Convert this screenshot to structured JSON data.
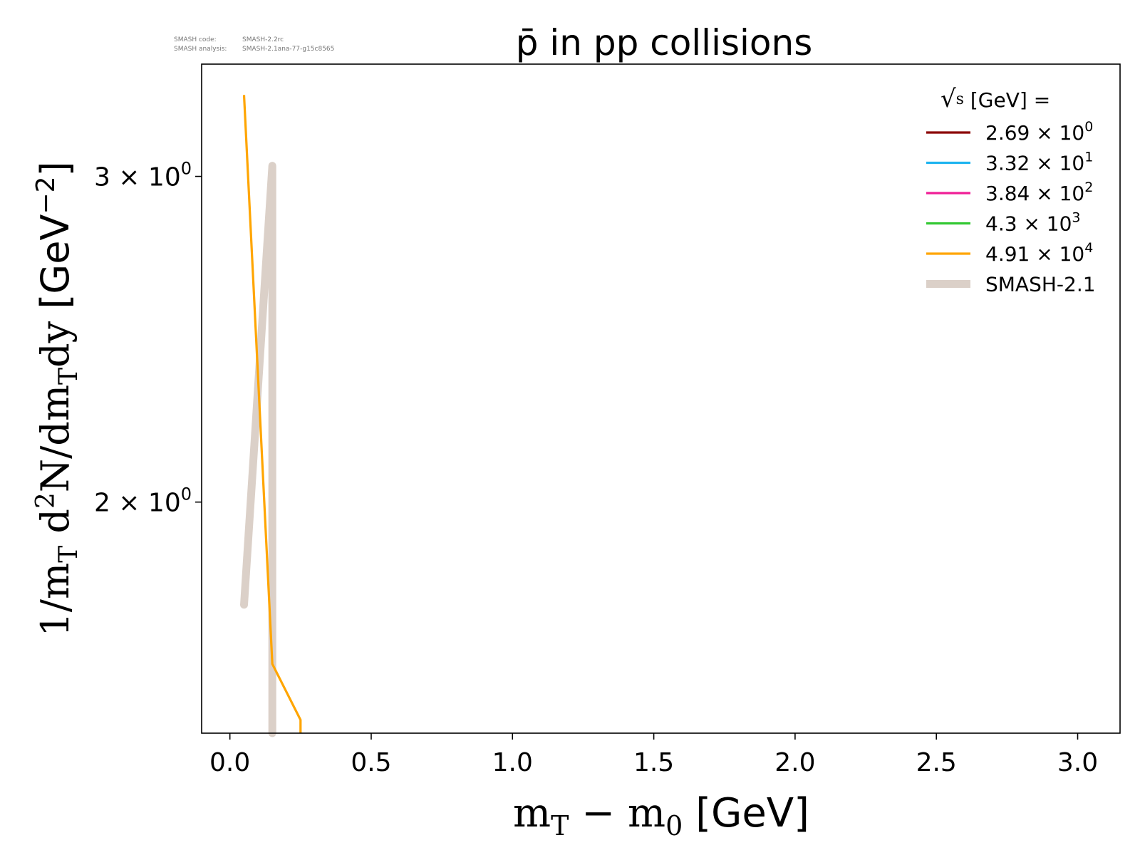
{
  "watermark": {
    "code_label": "SMASH code:",
    "code_value": "SMASH-2.2rc",
    "analysis_label": "SMASH analysis:",
    "analysis_value": "SMASH-2.1ana-77-g15c8565"
  },
  "chart_data": {
    "type": "line",
    "title": "p̄ in pp collisions",
    "xlabel": {
      "main": "m",
      "sub1": "T",
      "mid": " − m",
      "sub2": "0",
      "unit": " [GeV]"
    },
    "ylabel": {
      "p1": "1/m",
      "s1": "T",
      "p2": " d",
      "sup": "2",
      "p3": "N/dm",
      "s2": "T",
      "p4": "dy ",
      "unit": "[GeV",
      "unit_exp": "−2",
      "unit_end": "]"
    },
    "xlim": [
      -0.1,
      3.15
    ],
    "ylim_log": [
      1.5,
      3.45
    ],
    "y_scale": "log",
    "x_ticks": [
      "0.0",
      "0.5",
      "1.0",
      "1.5",
      "2.0",
      "2.5",
      "3.0"
    ],
    "x_tick_values": [
      0.0,
      0.5,
      1.0,
      1.5,
      2.0,
      2.5,
      3.0
    ],
    "y_ticks": [
      {
        "value": 3,
        "mant": "3 × 10",
        "exp": "0"
      },
      {
        "value": 2,
        "mant": "2 × 10",
        "exp": "0"
      }
    ],
    "legend_title": {
      "sym": "√",
      "s": "s",
      "rest": " [GeV] ="
    },
    "legend_placement": "top-right",
    "series": [
      {
        "name": "2.69 × 10",
        "exp": "0",
        "color": "#8b0000",
        "x": [],
        "y": []
      },
      {
        "name": "3.32 × 10",
        "exp": "1",
        "color": "#1eb4f0",
        "x": [],
        "y": []
      },
      {
        "name": "3.84 × 10",
        "exp": "2",
        "color": "#f01e96",
        "x": [],
        "y": []
      },
      {
        "name": "4.3 × 10",
        "exp": "3",
        "color": "#32c832",
        "x": [],
        "y": []
      },
      {
        "name": "4.91 × 10",
        "exp": "4",
        "color": "#ffa500",
        "x": [
          0.05,
          0.15,
          0.25,
          0.25
        ],
        "y": [
          3.32,
          1.635,
          1.525,
          1.49
        ]
      },
      {
        "name": "SMASH-2.1",
        "exp": "",
        "color": "#dbd0c8",
        "x": [
          0.05,
          0.15,
          0.15
        ],
        "y": [
          1.76,
          3.04,
          1.49
        ],
        "reference": true
      }
    ]
  }
}
